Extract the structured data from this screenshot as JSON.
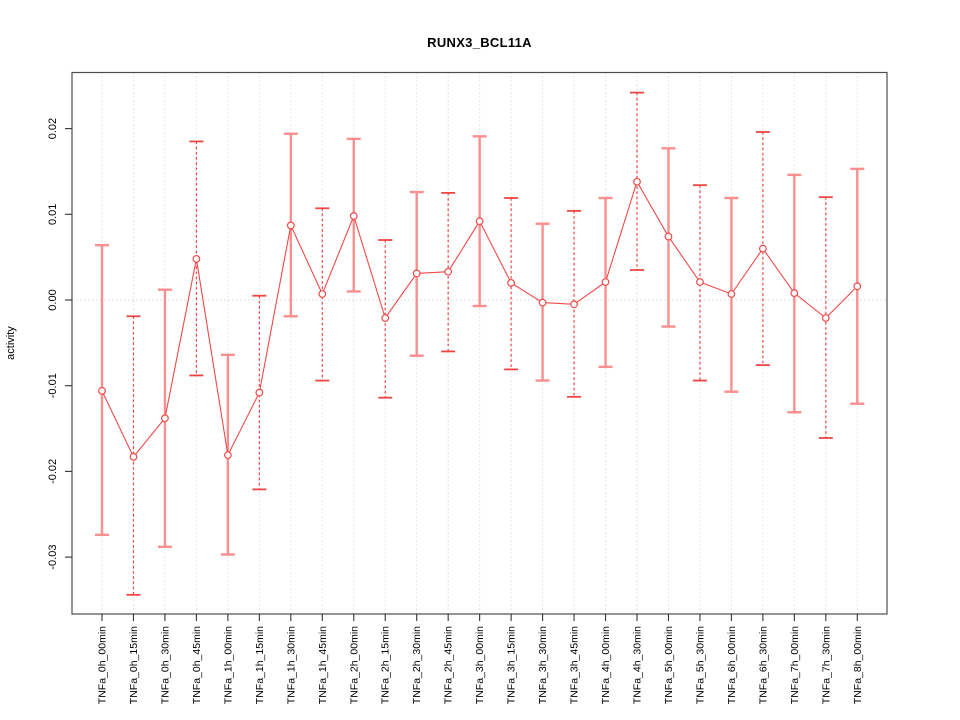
{
  "chart_data": {
    "type": "line",
    "subtype": "points-with-error-bars",
    "title": "RUNX3_BCL11A",
    "xlabel": "",
    "ylabel": "activity",
    "legend": "none",
    "grid": {
      "vertical_dotted_per_category": true,
      "horizontal_dotted_at_zero": true
    },
    "ylim": [
      -0.0365,
      0.0265
    ],
    "yticks": [
      "0.02",
      "0.01",
      "0.00",
      "-0.01",
      "-0.02",
      "-0.03"
    ],
    "ytick_values": [
      0.02,
      0.01,
      0.0,
      -0.01,
      -0.02,
      -0.03
    ],
    "categories": [
      "TNFa_0h_00min",
      "TNFa_0h_15min",
      "TNFa_0h_30min",
      "TNFa_0h_45min",
      "TNFa_1h_00min",
      "TNFa_1h_15min",
      "TNFa_1h_30min",
      "TNFa_1h_45min",
      "TNFa_2h_00min",
      "TNFa_2h_15min",
      "TNFa_2h_30min",
      "TNFa_2h_45min",
      "TNFa_3h_00min",
      "TNFa_3h_15min",
      "TNFa_3h_30min",
      "TNFa_3h_45min",
      "TNFa_4h_00min",
      "TNFa_4h_30min",
      "TNFa_5h_00min",
      "TNFa_5h_30min",
      "TNFa_6h_00min",
      "TNFa_6h_30min",
      "TNFa_7h_00min",
      "TNFa_7h_30min",
      "TNFa_8h_00min"
    ],
    "values": [
      -0.0106,
      -0.0183,
      -0.0138,
      0.0048,
      -0.0181,
      -0.0108,
      0.0087,
      0.0007,
      0.0098,
      -0.0021,
      0.0031,
      0.0033,
      0.0092,
      0.002,
      -0.0003,
      -0.0005,
      0.0021,
      0.0138,
      0.0074,
      0.0021,
      0.0007,
      0.006,
      0.0008,
      -0.0021,
      0.0016
    ],
    "error_upper": [
      0.0064,
      -0.0019,
      0.0012,
      0.0185,
      -0.0064,
      0.0005,
      0.0194,
      0.0107,
      0.0188,
      0.007,
      0.0126,
      0.0125,
      0.0191,
      0.0119,
      0.0089,
      0.0104,
      0.0119,
      0.0242,
      0.0177,
      0.0134,
      0.0119,
      0.0196,
      0.0146,
      0.012,
      0.0153
    ],
    "error_lower": [
      -0.0274,
      -0.0344,
      -0.0288,
      -0.0088,
      -0.0297,
      -0.0221,
      -0.0019,
      -0.0094,
      0.001,
      -0.0114,
      -0.0065,
      -0.006,
      -0.0007,
      -0.0081,
      -0.0094,
      -0.0113,
      -0.0078,
      0.0035,
      -0.0031,
      -0.0094,
      -0.0107,
      -0.0076,
      -0.0131,
      -0.0161,
      -0.0121
    ],
    "errorbar_style_pattern": [
      "solid",
      "dashed"
    ],
    "colors": {
      "point_and_line": "#F04A4A",
      "errorbar_solid": "#FB8F8F",
      "errorbar_dashed": "#EE4545",
      "gridline": "#D9D9D9",
      "axis_box": "#4D4D4D",
      "tick": "#333333",
      "text": "#000000",
      "point_fill": "#FFFFFF"
    }
  }
}
